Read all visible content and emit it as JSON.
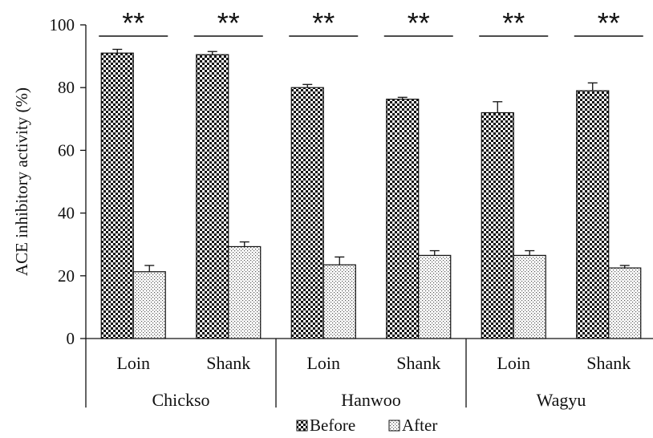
{
  "chart_data": {
    "type": "bar",
    "title": "",
    "ylabel": "ACE inhibitory activity (%)",
    "xlabel": "",
    "ylim": [
      0,
      100
    ],
    "yticks": [
      0,
      20,
      40,
      60,
      80,
      100
    ],
    "grid": false,
    "legend_position": "bottom",
    "categories": [
      "Loin",
      "Shank",
      "Loin",
      "Shank",
      "Loin",
      "Shank"
    ],
    "groups": [
      {
        "label": "Chickso",
        "categories": [
          "Loin",
          "Shank"
        ]
      },
      {
        "label": "Hanwoo",
        "categories": [
          "Loin",
          "Shank"
        ]
      },
      {
        "label": "Wagyu",
        "categories": [
          "Loin",
          "Shank"
        ]
      }
    ],
    "series": [
      {
        "name": "Before",
        "pattern": "checkerboard",
        "color": "#111111",
        "values": [
          91,
          90.5,
          80,
          76.3,
          72,
          79
        ],
        "errors": [
          1.2,
          1.0,
          1.0,
          0.6,
          3.5,
          2.5
        ]
      },
      {
        "name": "After",
        "pattern": "dotted",
        "color": "#666666",
        "values": [
          21.3,
          29.3,
          23.5,
          26.5,
          26.5,
          22.5
        ],
        "errors": [
          2.0,
          1.5,
          2.5,
          1.5,
          1.5,
          0.8
        ]
      }
    ],
    "annotations": [
      "**",
      "**",
      "**",
      "**",
      "**",
      "**"
    ]
  }
}
